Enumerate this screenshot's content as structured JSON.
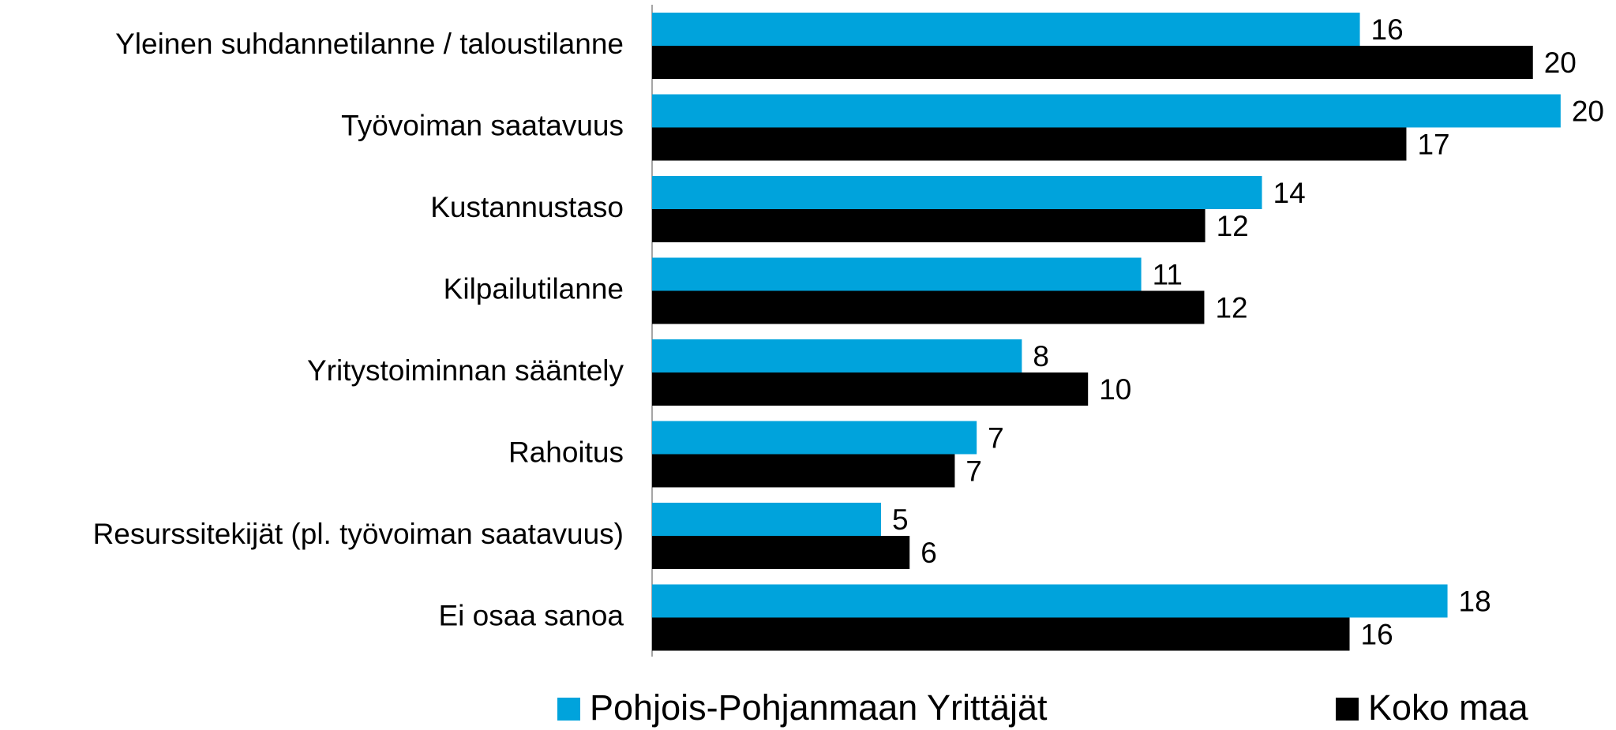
{
  "chart_data": {
    "type": "hbar",
    "categories": [
      "Yleinen suhdannetilanne / taloustilanne",
      "Työvoiman saatavuus",
      "Kustannustaso",
      "Kilpailutilanne",
      "Yritystoiminnan sääntely",
      "Rahoitus",
      "Resurssitekijät (pl. työvoiman saatavuus)",
      "Ei osaa sanoa"
    ],
    "series": [
      {
        "name": "Pohjois-Pohjanmaan Yrittäjät",
        "color": "#00a3dc",
        "values": [
          15.83,
          20.32,
          13.64,
          10.94,
          8.27,
          7.26,
          5.12,
          17.79
        ],
        "value_labels": [
          "16",
          "20",
          "14",
          "11",
          "8",
          "7",
          "5",
          "18"
        ]
      },
      {
        "name": "Koko maa",
        "color": "#000000",
        "values": [
          19.7,
          16.87,
          12.37,
          12.35,
          9.75,
          6.77,
          5.76,
          15.6
        ],
        "value_labels": [
          "20",
          "17",
          "12",
          "12",
          "10",
          "7",
          "6",
          "16"
        ]
      }
    ],
    "xlim": [
      0,
      22
    ],
    "legend": "bottom"
  }
}
